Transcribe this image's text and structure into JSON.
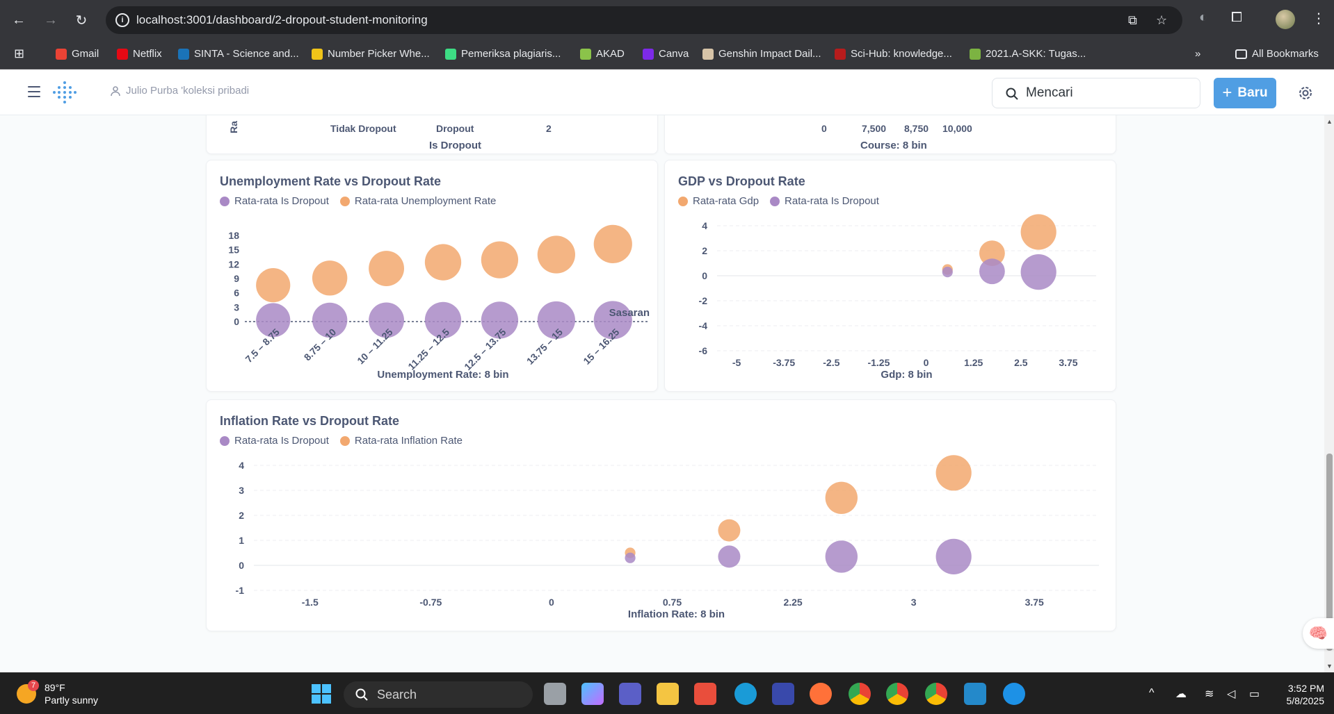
{
  "browser": {
    "url": "localhost:3001/dashboard/2-dropout-student-monitoring",
    "bookmarks": [
      {
        "label": "Gmail",
        "color": "#ea4335"
      },
      {
        "label": "Netflix",
        "color": "#e50914"
      },
      {
        "label": "SINTA - Science and...",
        "color": "#1a73b8"
      },
      {
        "label": "Number Picker Whe...",
        "color": "#f0c419"
      },
      {
        "label": "Pemeriksa plagiaris...",
        "color": "#3ddc84"
      },
      {
        "label": "AKAD",
        "color": "#8bc34a"
      },
      {
        "label": "Canva",
        "color": "#7d2ae8"
      },
      {
        "label": "Genshin Impact Dail...",
        "color": "#d7c4a8"
      },
      {
        "label": "Sci-Hub: knowledge...",
        "color": "#b71c1c"
      },
      {
        "label": "2021.A-SKK: Tugas...",
        "color": "#7cb342"
      }
    ],
    "all_bookmarks": "All Bookmarks",
    "more": "»"
  },
  "app": {
    "breadcrumb": "Julio Purba 'koleksi pribadi",
    "search_placeholder": "Mencari",
    "new_button": "Baru"
  },
  "top_partial": {
    "left_ticks": [
      "Tidak Dropout",
      "Dropout",
      "2"
    ],
    "left_axis_title": "Is Dropout",
    "left_ylabel_fragment": "Ra",
    "right_ticks": [
      "0",
      "7,500",
      "8,750",
      "10,000"
    ],
    "right_axis_title": "Course: 8 bin"
  },
  "chart_data": [
    {
      "type": "scatter",
      "title": "Unemployment Rate vs Dropout Rate",
      "legend": [
        {
          "name": "Rata-rata Is Dropout",
          "color": "#a989c5"
        },
        {
          "name": "Rata-rata Unemployment Rate",
          "color": "#f2a86f"
        }
      ],
      "xlabel": "Unemployment Rate: 8 bin",
      "categories": [
        "7.5 – 8.75",
        "8.75 – 10",
        "10 – 11.25",
        "11.25 – 12.5",
        "12.5 – 13.75",
        "13.75 – 15",
        "15 – 16.25"
      ],
      "yticks": [
        "0",
        "3",
        "6",
        "9",
        "12",
        "15",
        "18"
      ],
      "ylim": [
        0,
        18
      ],
      "goal_label": "Sasaran",
      "goal_value": 0,
      "series": [
        {
          "name": "Rata-rata Is Dropout",
          "color": "#a989c5",
          "values": [
            0.3,
            0.3,
            0.3,
            0.3,
            0.3,
            0.3,
            0.3
          ],
          "sizes": [
            0.55,
            0.6,
            0.62,
            0.68,
            0.72,
            0.76,
            0.8
          ]
        },
        {
          "name": "Rata-rata Unemployment Rate",
          "color": "#f2a86f",
          "values": [
            7.6,
            9.1,
            11.1,
            12.4,
            12.9,
            14.0,
            16.2
          ],
          "sizes": [
            0.55,
            0.6,
            0.62,
            0.68,
            0.72,
            0.76,
            0.8
          ]
        }
      ]
    },
    {
      "type": "scatter",
      "title": "GDP vs Dropout Rate",
      "legend": [
        {
          "name": "Rata-rata Gdp",
          "color": "#f2a86f"
        },
        {
          "name": "Rata-rata Is Dropout",
          "color": "#a989c5"
        }
      ],
      "xlabel": "Gdp: 8 bin",
      "xticks": [
        "-5",
        "-3.75",
        "-2.5",
        "-1.25",
        "0",
        "1.25",
        "2.5",
        "3.75"
      ],
      "yticks": [
        "-6",
        "-4",
        "-2",
        "0",
        "2",
        "4"
      ],
      "ylim": [
        -6,
        4
      ],
      "series": [
        {
          "name": "Rata-rata Gdp",
          "color": "#f2a86f",
          "points": [
            {
              "x": 0.6,
              "y": 0.5,
              "size": 0.15
            },
            {
              "x": 1.8,
              "y": 1.8,
              "size": 0.6
            },
            {
              "x": 3.05,
              "y": 3.5,
              "size": 0.9
            }
          ]
        },
        {
          "name": "Rata-rata Is Dropout",
          "color": "#a989c5",
          "points": [
            {
              "x": 0.6,
              "y": 0.3,
              "size": 0.15
            },
            {
              "x": 1.8,
              "y": 0.35,
              "size": 0.6
            },
            {
              "x": 3.05,
              "y": 0.3,
              "size": 0.9
            }
          ]
        }
      ]
    },
    {
      "type": "scatter",
      "title": "Inflation Rate vs Dropout Rate",
      "legend": [
        {
          "name": "Rata-rata Is Dropout",
          "color": "#a989c5"
        },
        {
          "name": "Rata-rata Inflation Rate",
          "color": "#f2a86f"
        }
      ],
      "xlabel": "Inflation Rate: 8 bin",
      "xticks": [
        "-1.5",
        "-0.75",
        "0",
        "0.75",
        "2.25",
        "3",
        "3.75"
      ],
      "yticks": [
        "-1",
        "0",
        "1",
        "2",
        "3",
        "4"
      ],
      "ylim": [
        -1,
        4
      ],
      "series": [
        {
          "name": "Rata-rata Inflation Rate",
          "color": "#f2a86f",
          "points": [
            {
              "x": 0.85,
              "y": 0.5,
              "size": 0.15
            },
            {
              "x": 1.6,
              "y": 1.4,
              "size": 0.5
            },
            {
              "x": 2.45,
              "y": 2.7,
              "size": 0.8
            },
            {
              "x": 3.3,
              "y": 3.7,
              "size": 0.9
            }
          ]
        },
        {
          "name": "Rata-rata Is Dropout",
          "color": "#a989c5",
          "points": [
            {
              "x": 0.85,
              "y": 0.3,
              "size": 0.15
            },
            {
              "x": 1.6,
              "y": 0.35,
              "size": 0.5
            },
            {
              "x": 2.45,
              "y": 0.35,
              "size": 0.8
            },
            {
              "x": 3.3,
              "y": 0.35,
              "size": 0.9
            }
          ]
        }
      ]
    }
  ],
  "taskbar": {
    "weather_temp": "89°F",
    "weather_desc": "Partly sunny",
    "weather_badge": "7",
    "search": "Search",
    "time": "3:52 PM",
    "date": "5/8/2025"
  }
}
